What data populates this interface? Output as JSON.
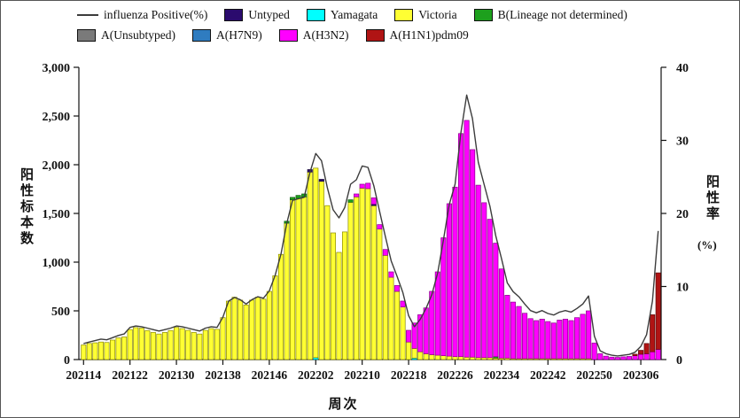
{
  "legend": {
    "rows": [
      [
        {
          "type": "line",
          "name": "influenza-positive-line",
          "label": "influenza Positive(%)",
          "color": "#3c3c3c"
        },
        {
          "type": "swatch",
          "name": "untyped",
          "label": "Untyped",
          "color": "#2b0b6e"
        },
        {
          "type": "swatch",
          "name": "yamagata",
          "label": "Yamagata",
          "color": "#00ffff"
        },
        {
          "type": "swatch",
          "name": "victoria",
          "label": "Victoria",
          "color": "#ffff33"
        },
        {
          "type": "swatch",
          "name": "b-lineage-not-determined",
          "label": "B(Lineage not determined)",
          "color": "#1da01d"
        }
      ],
      [
        {
          "type": "swatch",
          "name": "a-unsubtyped",
          "label": "A(Unsubtyped)",
          "color": "#7a7a7a"
        },
        {
          "type": "swatch",
          "name": "a-h7n9",
          "label": "A(H7N9)",
          "color": "#2f7cc0"
        },
        {
          "type": "swatch",
          "name": "a-h3n2",
          "label": "A(H3N2)",
          "color": "#ff00ff"
        },
        {
          "type": "swatch",
          "name": "a-h1n1pdm09",
          "label": "A(H1N1)pdm09",
          "color": "#b01414"
        }
      ]
    ]
  },
  "axes": {
    "left": {
      "title": "阳性标本数",
      "tick_labels": [
        "0",
        "500",
        "1,000",
        "1,500",
        "2,000",
        "2,500",
        "3,000"
      ],
      "tick_values": [
        0,
        500,
        1000,
        1500,
        2000,
        2500,
        3000
      ],
      "max": 3000
    },
    "right": {
      "title": "阳性率",
      "unit": "(%)",
      "tick_labels": [
        "0",
        "10",
        "20",
        "30",
        "40"
      ],
      "tick_values": [
        0,
        10,
        20,
        30,
        40
      ],
      "max": 40
    },
    "x": {
      "title": "周次",
      "tick_indices": [
        0,
        8,
        16,
        24,
        32,
        40,
        48,
        56,
        64,
        72,
        80,
        88,
        96
      ],
      "tick_labels": [
        "202114",
        "202122",
        "202130",
        "202138",
        "202146",
        "202202",
        "202210",
        "202218",
        "202226",
        "202234",
        "202242",
        "202250",
        "202306"
      ]
    }
  },
  "chart_data": {
    "type": "bar",
    "subtype": "stacked-bars-with-line",
    "title": "",
    "xlabel": "周次",
    "ylabel_left": "阳性标本数",
    "ylabel_right": "阳性率(%)",
    "ylim_left": [
      0,
      3000
    ],
    "ylim_right": [
      0,
      40
    ],
    "grid": false,
    "legend_position": "top",
    "categories": [
      "202114",
      "202115",
      "202116",
      "202117",
      "202118",
      "202119",
      "202120",
      "202121",
      "202122",
      "202123",
      "202124",
      "202125",
      "202126",
      "202127",
      "202128",
      "202129",
      "202130",
      "202131",
      "202132",
      "202133",
      "202134",
      "202135",
      "202136",
      "202137",
      "202138",
      "202139",
      "202140",
      "202141",
      "202142",
      "202143",
      "202144",
      "202145",
      "202146",
      "202147",
      "202148",
      "202149",
      "202150",
      "202151",
      "202152",
      "202201",
      "202202",
      "202203",
      "202204",
      "202205",
      "202206",
      "202207",
      "202208",
      "202209",
      "202210",
      "202211",
      "202212",
      "202213",
      "202214",
      "202215",
      "202216",
      "202217",
      "202218",
      "202219",
      "202220",
      "202221",
      "202222",
      "202223",
      "202224",
      "202225",
      "202226",
      "202227",
      "202228",
      "202229",
      "202230",
      "202231",
      "202232",
      "202233",
      "202234",
      "202235",
      "202236",
      "202237",
      "202238",
      "202239",
      "202240",
      "202241",
      "202242",
      "202243",
      "202244",
      "202245",
      "202246",
      "202247",
      "202248",
      "202249",
      "202250",
      "202251",
      "202252",
      "202301",
      "202302",
      "202303",
      "202304",
      "202305",
      "202306",
      "202307",
      "202308",
      "202309"
    ],
    "stack_order_bottom_to_top": [
      "yamagata",
      "victoria",
      "b_lineage_not_determined",
      "untyped",
      "a_h3n2",
      "a_h1n1pdm09"
    ],
    "series": [
      {
        "name": "yamagata",
        "label": "Yamagata",
        "color": "#00ffff",
        "edge": "#008989",
        "values": [
          0,
          0,
          0,
          0,
          0,
          0,
          0,
          0,
          0,
          0,
          0,
          0,
          0,
          0,
          0,
          0,
          0,
          0,
          0,
          0,
          0,
          0,
          0,
          0,
          0,
          0,
          0,
          0,
          0,
          0,
          0,
          0,
          0,
          0,
          0,
          0,
          0,
          0,
          0,
          0,
          20,
          0,
          0,
          0,
          0,
          0,
          0,
          0,
          0,
          0,
          0,
          0,
          0,
          0,
          0,
          0,
          0,
          15,
          0,
          0,
          0,
          0,
          0,
          0,
          0,
          0,
          0,
          0,
          0,
          0,
          0,
          0,
          0,
          0,
          0,
          0,
          0,
          0,
          0,
          0,
          0,
          0,
          0,
          0,
          0,
          0,
          0,
          0,
          0,
          0,
          0,
          0,
          0,
          0,
          0,
          0,
          0,
          0,
          0,
          0
        ]
      },
      {
        "name": "victoria",
        "label": "Victoria",
        "color": "#ffff33",
        "edge": "#8a8a00",
        "values": [
          150,
          165,
          172,
          180,
          175,
          200,
          222,
          232,
          308,
          328,
          322,
          298,
          278,
          262,
          278,
          298,
          330,
          318,
          300,
          278,
          262,
          300,
          318,
          310,
          430,
          600,
          640,
          610,
          560,
          610,
          640,
          620,
          700,
          860,
          1080,
          1400,
          1640,
          1655,
          1670,
          1925,
          1945,
          1830,
          1580,
          1300,
          1100,
          1310,
          1615,
          1670,
          1760,
          1755,
          1580,
          1340,
          1070,
          845,
          700,
          540,
          180,
          100,
          80,
          60,
          50,
          45,
          40,
          35,
          30,
          30,
          25,
          25,
          20,
          20,
          20,
          15,
          15,
          15,
          10,
          10,
          10,
          10,
          10,
          10,
          10,
          10,
          10,
          10,
          10,
          10,
          10,
          10,
          0,
          0,
          0,
          0,
          0,
          0,
          0,
          0,
          0,
          0,
          0,
          0
        ]
      },
      {
        "name": "b_lineage_not_determined",
        "label": "B(Lineage not determined)",
        "color": "#1da01d",
        "edge": "#0c5a0c",
        "values": [
          0,
          0,
          0,
          0,
          0,
          0,
          0,
          0,
          0,
          0,
          0,
          0,
          0,
          0,
          0,
          0,
          0,
          0,
          0,
          0,
          0,
          0,
          0,
          0,
          0,
          0,
          0,
          0,
          0,
          0,
          0,
          0,
          0,
          0,
          0,
          20,
          25,
          30,
          30,
          0,
          0,
          0,
          0,
          0,
          0,
          0,
          25,
          0,
          0,
          0,
          0,
          0,
          0,
          0,
          0,
          0,
          0,
          0,
          0,
          0,
          0,
          0,
          0,
          0,
          0,
          0,
          0,
          0,
          0,
          0,
          0,
          15,
          0,
          0,
          0,
          0,
          0,
          0,
          0,
          0,
          0,
          0,
          0,
          0,
          0,
          0,
          0,
          0,
          0,
          0,
          0,
          0,
          0,
          0,
          0,
          0,
          0,
          0,
          0,
          0
        ]
      },
      {
        "name": "untyped",
        "label": "Untyped",
        "color": "#2b0b6e",
        "edge": "#160536",
        "values": [
          0,
          0,
          0,
          0,
          0,
          0,
          0,
          0,
          0,
          0,
          0,
          0,
          0,
          0,
          0,
          0,
          0,
          0,
          0,
          0,
          0,
          0,
          0,
          0,
          0,
          0,
          0,
          0,
          0,
          0,
          0,
          0,
          0,
          0,
          0,
          0,
          0,
          0,
          0,
          25,
          0,
          20,
          0,
          0,
          0,
          0,
          0,
          0,
          0,
          0,
          15,
          0,
          0,
          0,
          0,
          0,
          0,
          0,
          0,
          0,
          0,
          0,
          0,
          0,
          0,
          0,
          0,
          0,
          0,
          0,
          0,
          0,
          0,
          0,
          0,
          0,
          0,
          0,
          0,
          0,
          0,
          0,
          0,
          0,
          0,
          0,
          0,
          0,
          0,
          0,
          0,
          0,
          0,
          0,
          0,
          0,
          0,
          0,
          0,
          0
        ]
      },
      {
        "name": "a_h3n2",
        "label": "A(H3N2)",
        "color": "#ff00ff",
        "edge": "#8b008b",
        "values": [
          0,
          0,
          0,
          0,
          0,
          0,
          0,
          0,
          0,
          0,
          0,
          0,
          0,
          0,
          0,
          0,
          0,
          0,
          0,
          0,
          0,
          0,
          0,
          0,
          0,
          0,
          0,
          0,
          0,
          0,
          0,
          0,
          0,
          0,
          0,
          0,
          0,
          0,
          0,
          0,
          0,
          0,
          0,
          0,
          0,
          0,
          0,
          30,
          40,
          55,
          65,
          45,
          60,
          55,
          60,
          60,
          120,
          260,
          380,
          470,
          650,
          855,
          1210,
          1565,
          1740,
          2290,
          2430,
          2130,
          1770,
          1590,
          1420,
          1165,
          915,
          645,
          580,
          535,
          465,
          410,
          390,
          405,
          380,
          365,
          395,
          405,
          390,
          420,
          455,
          490,
          170,
          60,
          35,
          25,
          22,
          28,
          32,
          40,
          55,
          60,
          80,
          105
        ]
      },
      {
        "name": "a_h1n1pdm09",
        "label": "A(H1N1)pdm09",
        "color": "#b01414",
        "edge": "#5e0b0b",
        "values": [
          0,
          0,
          0,
          0,
          0,
          0,
          0,
          0,
          0,
          0,
          0,
          0,
          0,
          0,
          0,
          0,
          0,
          0,
          0,
          0,
          0,
          0,
          0,
          0,
          0,
          0,
          0,
          0,
          0,
          0,
          0,
          0,
          0,
          0,
          0,
          0,
          0,
          0,
          0,
          0,
          0,
          0,
          0,
          0,
          0,
          0,
          0,
          0,
          0,
          0,
          0,
          0,
          0,
          0,
          0,
          0,
          0,
          0,
          0,
          0,
          0,
          0,
          0,
          0,
          0,
          0,
          0,
          0,
          0,
          0,
          0,
          0,
          0,
          0,
          0,
          0,
          0,
          0,
          0,
          0,
          0,
          0,
          0,
          0,
          0,
          0,
          0,
          0,
          0,
          0,
          0,
          0,
          0,
          0,
          0,
          15,
          40,
          105,
          380,
          785
        ]
      }
    ],
    "line": {
      "name": "influenza_positive_pct",
      "label": "influenza Positive(%)",
      "color": "#3c3c3c",
      "axis": "right",
      "values": [
        2.2,
        2.4,
        2.6,
        2.8,
        2.7,
        3.0,
        3.3,
        3.5,
        4.4,
        4.6,
        4.5,
        4.3,
        4.1,
        3.9,
        4.1,
        4.3,
        4.6,
        4.5,
        4.3,
        4.1,
        3.9,
        4.3,
        4.5,
        4.4,
        5.8,
        8.0,
        8.5,
        8.2,
        7.6,
        8.2,
        8.6,
        8.4,
        9.4,
        11.5,
        14.4,
        18.6,
        21.8,
        22.0,
        22.2,
        25.6,
        28.2,
        27.2,
        23.5,
        20.5,
        19.4,
        20.8,
        24.0,
        24.6,
        26.5,
        26.3,
        23.8,
        20.3,
        16.8,
        13.5,
        11.4,
        9.2,
        6.0,
        4.5,
        5.5,
        7.0,
        8.9,
        11.8,
        16.4,
        21.2,
        24.0,
        31.0,
        36.2,
        33.0,
        27.0,
        24.0,
        21.0,
        17.0,
        13.8,
        10.5,
        9.3,
        8.6,
        7.6,
        6.7,
        6.4,
        6.7,
        6.3,
        6.1,
        6.5,
        6.7,
        6.5,
        7.0,
        7.6,
        8.7,
        3.2,
        1.2,
        0.8,
        0.6,
        0.5,
        0.6,
        0.7,
        1.0,
        1.8,
        3.4,
        8.0,
        17.6
      ]
    }
  }
}
